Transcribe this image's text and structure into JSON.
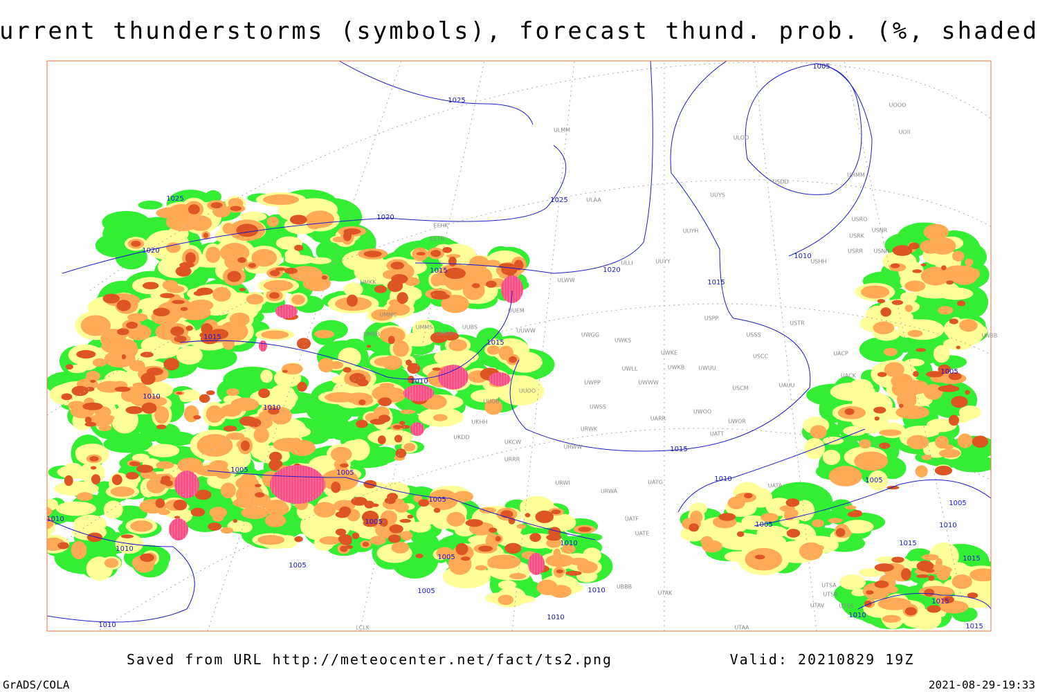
{
  "header": {
    "title": "Current thunderstorms (symbols), forecast thund. prob. (%, shaded)"
  },
  "map": {
    "isobar_labels": [
      "1025",
      "1025",
      "1020",
      "1020",
      "1025",
      "1005",
      "1010",
      "1015",
      "1020",
      "1015",
      "1015",
      "1015",
      "1010",
      "1010",
      "1010",
      "1005",
      "1005",
      "1005",
      "1005",
      "1015",
      "1010",
      "1010",
      "1010",
      "1005",
      "1005",
      "1010",
      "1005",
      "1010",
      "1010",
      "1010",
      "1005",
      "1005",
      "1005",
      "1005",
      "1010",
      "1015",
      "1015",
      "1015",
      "1010",
      "1015"
    ],
    "station_labels": [
      "ULMM",
      "ULAA",
      "EFHK",
      "EETN",
      "ULLI",
      "UUYY",
      "ULWW",
      "UUYH",
      "UUYS",
      "ULOO",
      "UOOO",
      "UOII",
      "USDD",
      "UHMM",
      "USRO",
      "USNR",
      "USRK",
      "USRR",
      "USNN",
      "USHH",
      "UMKK",
      "UMMC",
      "UMBB",
      "UMMS",
      "UMOO",
      "UUBS",
      "UUEM",
      "UUWW",
      "UWGG",
      "UWKS",
      "USSS",
      "USTR",
      "USPP",
      "UWKE",
      "UWKB",
      "UWUU",
      "USCC",
      "UACP",
      "UACK",
      "UWLL",
      "UWPP",
      "UWWW",
      "USCM",
      "UAUU",
      "UUOO",
      "UUOB",
      "UWSS",
      "UARR",
      "UWOO",
      "UWOR",
      "UKHH",
      "UKDD",
      "UATT",
      "URWK",
      "UKCW",
      "URWW",
      "URRR",
      "URWI",
      "URWA",
      "UATG",
      "UATA",
      "UATE",
      "UATF",
      "UBBB",
      "UTAK",
      "UTSA",
      "UTSB",
      "UTAV",
      "UTSS",
      "UTAA",
      "LCLK",
      "UNBB"
    ]
  },
  "footer": {
    "source": "Saved from URL http://meteocenter.net/fact/ts2.png",
    "valid": "Valid: 20210829 19Z",
    "software": "GrADS/COLA",
    "timestamp": "2021-08-29-19:33"
  }
}
